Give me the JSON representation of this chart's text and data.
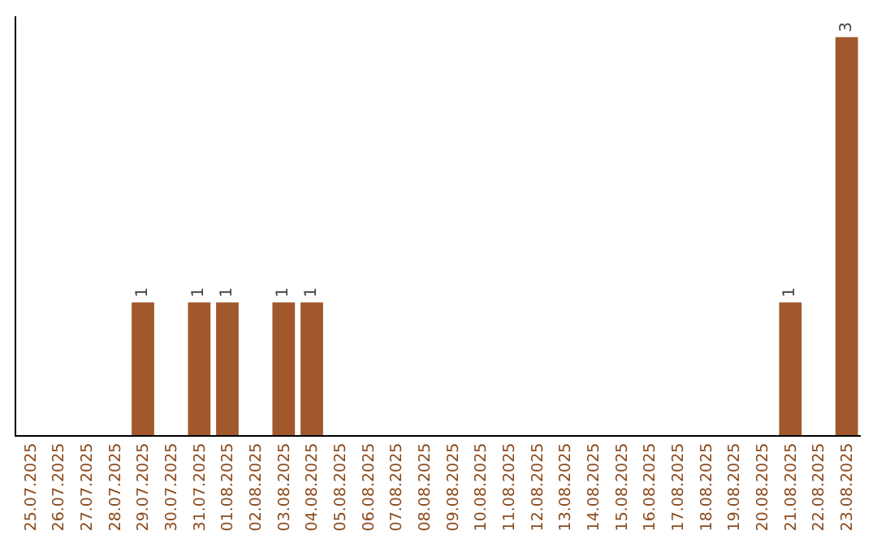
{
  "chart_data": {
    "type": "bar",
    "categories": [
      "25.07.2025",
      "26.07.2025",
      "27.07.2025",
      "28.07.2025",
      "29.07.2025",
      "30.07.2025",
      "31.07.2025",
      "01.08.2025",
      "02.08.2025",
      "03.08.2025",
      "04.08.2025",
      "05.08.2025",
      "06.08.2025",
      "07.08.2025",
      "08.08.2025",
      "09.08.2025",
      "10.08.2025",
      "11.08.2025",
      "12.08.2025",
      "13.08.2025",
      "14.08.2025",
      "15.08.2025",
      "16.08.2025",
      "17.08.2025",
      "18.08.2025",
      "19.08.2025",
      "20.08.2025",
      "21.08.2025",
      "22.08.2025",
      "23.08.2025"
    ],
    "values": [
      0,
      0,
      0,
      0,
      1,
      0,
      1,
      1,
      0,
      1,
      1,
      0,
      0,
      0,
      0,
      0,
      0,
      0,
      0,
      0,
      0,
      0,
      0,
      0,
      0,
      0,
      0,
      1,
      0,
      3
    ],
    "value_labels": [
      null,
      null,
      null,
      null,
      "1",
      null,
      "1",
      "1",
      null,
      "1",
      "1",
      null,
      null,
      null,
      null,
      null,
      null,
      null,
      null,
      null,
      null,
      null,
      null,
      null,
      null,
      null,
      null,
      "1",
      null,
      "3"
    ],
    "color": "#a0582c",
    "grid": false
  }
}
